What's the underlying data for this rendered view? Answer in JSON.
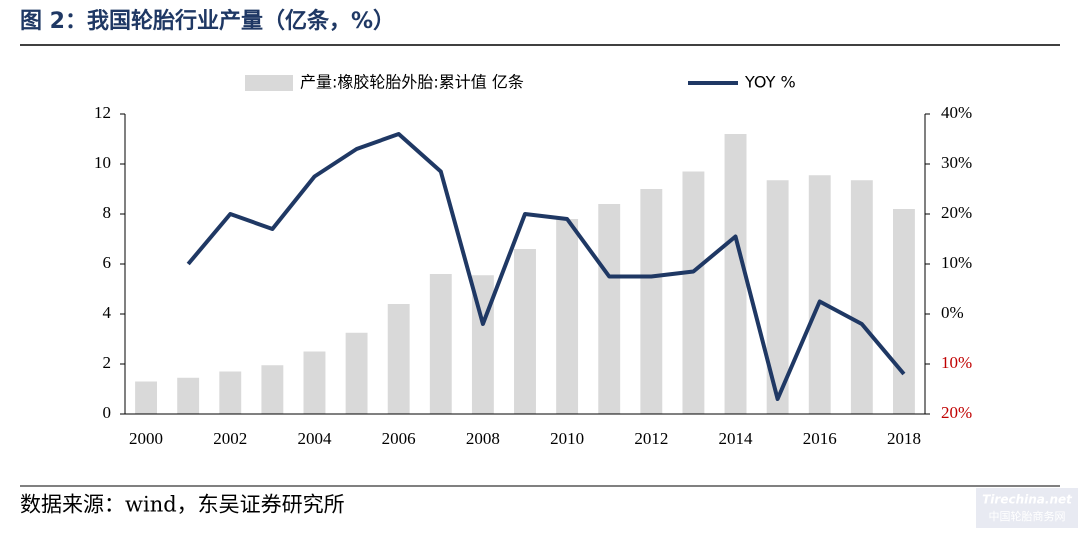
{
  "chart_data": {
    "type": "bar_line",
    "title": "图 2：我国轮胎行业产量（亿条，%）",
    "source": "数据来源：wind，东吴证券研究所",
    "watermark": [
      "Tirechina.net",
      "中国轮胎商务网"
    ],
    "categories": [
      "2000",
      null,
      "2002",
      null,
      "2004",
      null,
      "2006",
      null,
      "2008",
      null,
      "2010",
      null,
      "2012",
      null,
      "2014",
      null,
      "2016",
      null,
      "2018"
    ],
    "series": [
      {
        "name": "产量:橡胶轮胎外胎:累计值 亿条",
        "type": "bar",
        "color": "#d9d9d9",
        "values": [
          1.3,
          1.45,
          1.7,
          1.95,
          2.5,
          3.25,
          4.4,
          5.6,
          5.55,
          6.6,
          7.8,
          8.4,
          9.0,
          9.7,
          11.2,
          9.35,
          9.55,
          9.35,
          8.2
        ]
      },
      {
        "name": "YOY %",
        "type": "line",
        "axis": "y2",
        "color": "#1f3864",
        "values": [
          null,
          10,
          20,
          17,
          27.5,
          33,
          36,
          28.5,
          -2,
          20,
          19,
          7.5,
          7.5,
          8.5,
          15.5,
          -17,
          2.5,
          -2,
          -12
        ]
      }
    ],
    "ylim": [
      0,
      12
    ],
    "yticks": [
      0,
      2,
      4,
      6,
      8,
      10,
      12
    ],
    "y2lim": [
      -20,
      40
    ],
    "y2ticks": [
      {
        "value": -20,
        "label": "20%"
      },
      {
        "value": -10,
        "label": "10%"
      },
      {
        "value": 0,
        "label": "0%"
      },
      {
        "value": 10,
        "label": "10%"
      },
      {
        "value": 20,
        "label": "20%"
      },
      {
        "value": 30,
        "label": "30%"
      },
      {
        "value": 40,
        "label": "40%"
      }
    ],
    "y2tick_negative_color": "#c00000",
    "legend": "top"
  }
}
